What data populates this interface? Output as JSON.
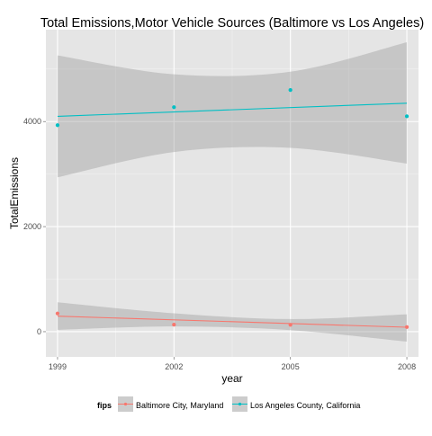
{
  "chart_data": {
    "type": "scatter",
    "title": "Total Emissions,Motor Vehicle Sources (Baltimore vs Los Angeles)",
    "xlabel": "year",
    "ylabel": "TotalEmissions",
    "x_ticks": [
      1999,
      2002,
      2005,
      2008
    ],
    "y_ticks": [
      0,
      2000,
      4000
    ],
    "xlim": [
      1998.7,
      2008.3
    ],
    "ylim": [
      -480,
      5750
    ],
    "grid": true,
    "legend": {
      "title": "fips",
      "placement": "bottom"
    },
    "series": [
      {
        "name": "Baltimore City, Maryland",
        "color": "#F8766D",
        "x": [
          1999,
          2002,
          2005,
          2008
        ],
        "y": [
          346.8,
          134.3,
          130.4,
          88.3
        ],
        "trend": {
          "x": [
            1999,
            2008
          ],
          "y": [
            295,
            85
          ]
        },
        "ci": {
          "x": [
            1999,
            2002,
            2005,
            2008
          ],
          "lower": [
            35,
            100,
            30,
            -190
          ],
          "upper": [
            560,
            350,
            240,
            330
          ]
        }
      },
      {
        "name": "Los Angeles County, California",
        "color": "#00BFC4",
        "x": [
          1999,
          2002,
          2005,
          2008
        ],
        "y": [
          3931.1,
          4274.0,
          4601.4,
          4101.3
        ],
        "trend": {
          "x": [
            1999,
            2008
          ],
          "y": [
            4100,
            4350
          ]
        },
        "ci": {
          "x": [
            1999,
            2002,
            2005,
            2008
          ],
          "lower": [
            2940,
            3420,
            3500,
            3200
          ],
          "upper": [
            5260,
            4900,
            4950,
            5510
          ]
        }
      }
    ]
  }
}
